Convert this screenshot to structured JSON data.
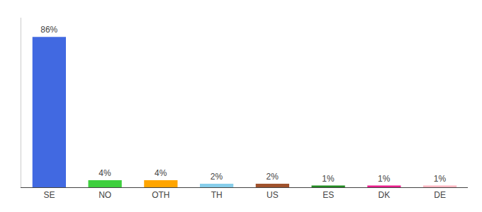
{
  "chart_data": {
    "type": "bar",
    "categories": [
      "SE",
      "NO",
      "OTH",
      "TH",
      "US",
      "ES",
      "DK",
      "DE"
    ],
    "values": [
      86,
      4,
      4,
      2,
      2,
      1,
      1,
      1
    ],
    "value_labels": [
      "86%",
      "4%",
      "4%",
      "2%",
      "2%",
      "1%",
      "1%",
      "1%"
    ],
    "data_labels": true,
    "colors": [
      "#4169e1",
      "#3ecf3e",
      "#ffa500",
      "#87ceeb",
      "#a0522d",
      "#228b22",
      "#e91e8c",
      "#ffb6c1"
    ],
    "ylim": [
      0,
      97
    ],
    "grid": false,
    "tick_labels": "x"
  }
}
